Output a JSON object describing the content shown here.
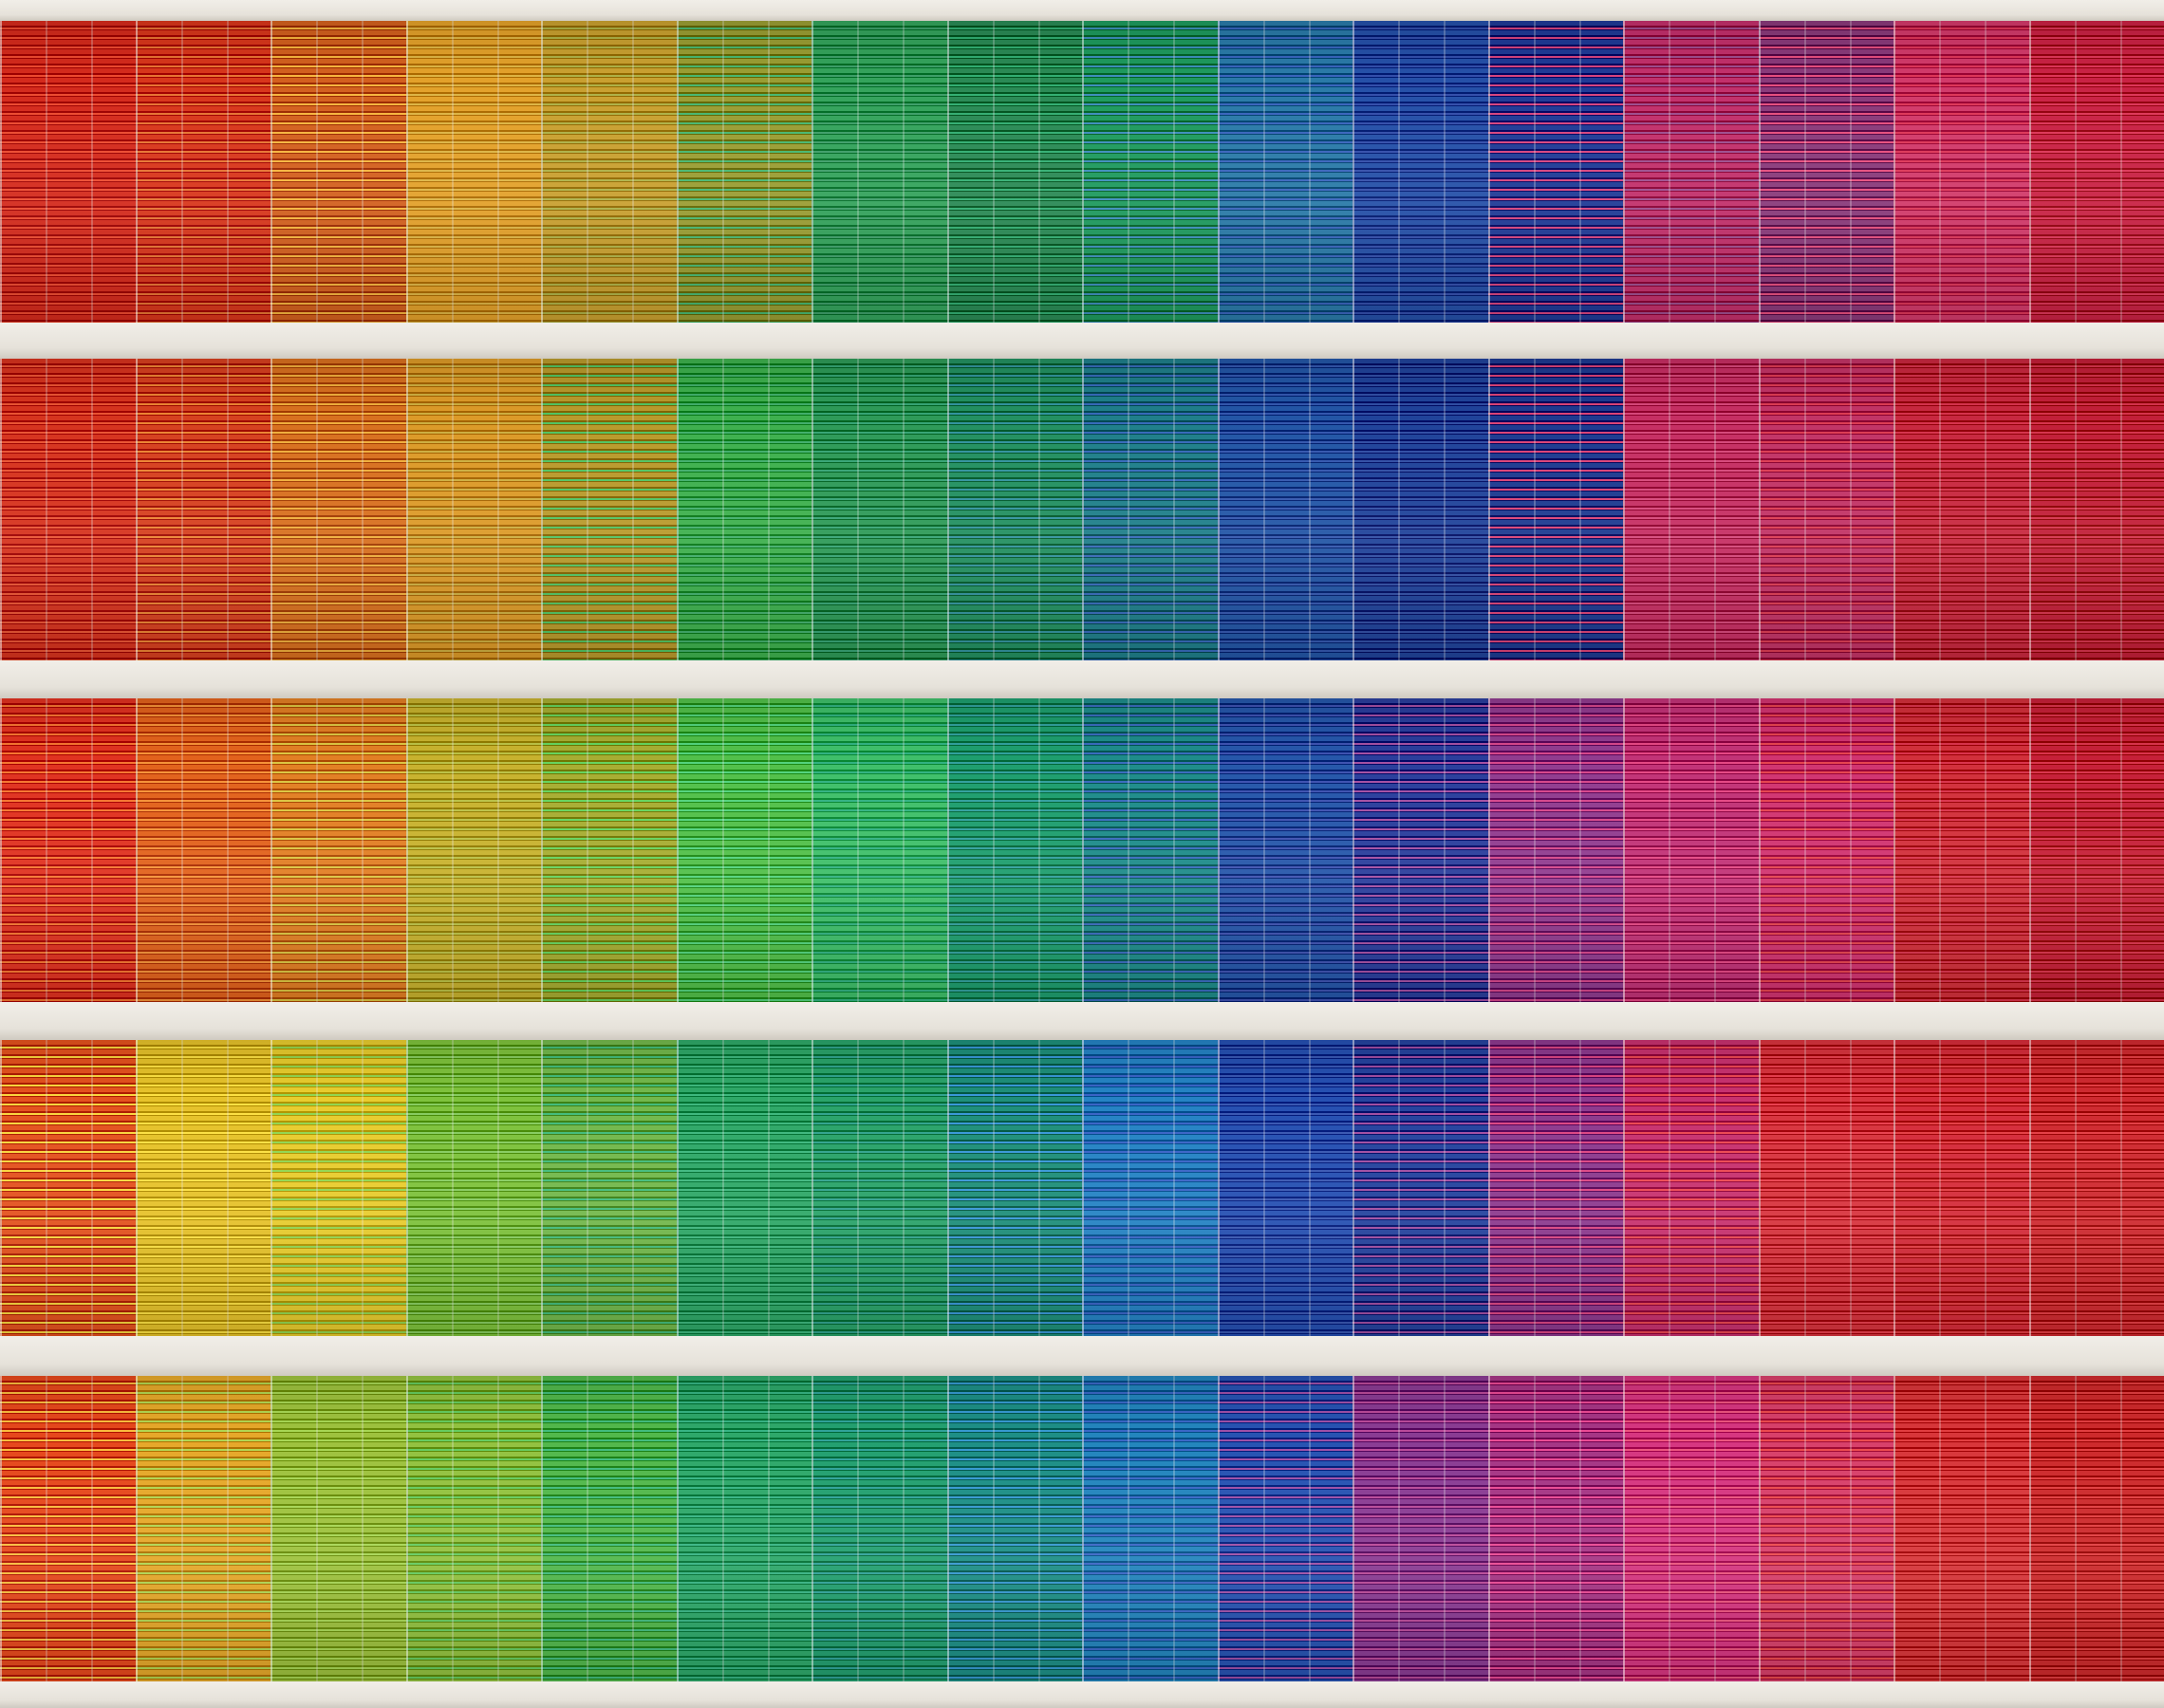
{
  "scene": "colored-blinds-facade",
  "floors": [
    [
      "#d42a1c",
      "#d8361b",
      "#d3601e",
      "#e3a12a",
      "#c9a030",
      "#9a9d33",
      "#34a35c",
      "#2a8a55",
      "#1e9a5e",
      "#2a7aa8",
      "#2550a8",
      "#1f3a96",
      "#c2306b",
      "#8a3a7a",
      "#d23a6a",
      "#c92244"
    ],
    [
      "#d6331e",
      "#d6401f",
      "#d8701f",
      "#dc9a28",
      "#b99a2c",
      "#3eb04e",
      "#2e9a58",
      "#239061",
      "#1f7f8a",
      "#2356a6",
      "#20439a",
      "#1d3a90",
      "#c62f63",
      "#c23466",
      "#c8283f",
      "#c21f38"
    ],
    [
      "#e03220",
      "#e2621c",
      "#e27f24",
      "#c8b22e",
      "#a7ad32",
      "#52c04a",
      "#3fbf6a",
      "#1e9e6e",
      "#1e8c8a",
      "#2657aa",
      "#2a3e9c",
      "#913c8f",
      "#c23377",
      "#d13470",
      "#d2303b",
      "#c62038"
    ],
    [
      "#e4521e",
      "#e6c22a",
      "#e8cc2e",
      "#7ec23c",
      "#73b84c",
      "#2fa868",
      "#2aa36a",
      "#1e8f7a",
      "#2583c4",
      "#2650b2",
      "#25439e",
      "#8d3a8e",
      "#c8326f",
      "#d8343e",
      "#d52c3a",
      "#cf2a30"
    ],
    [
      "#e6481c",
      "#e6a82a",
      "#9ec23e",
      "#93c240",
      "#52b84c",
      "#2ea86a",
      "#23a070",
      "#1d8f86",
      "#2385bd",
      "#2753b2",
      "#8a3c93",
      "#a63685",
      "#d63680",
      "#d8406a",
      "#d8363a",
      "#cd2a2c"
    ]
  ]
}
